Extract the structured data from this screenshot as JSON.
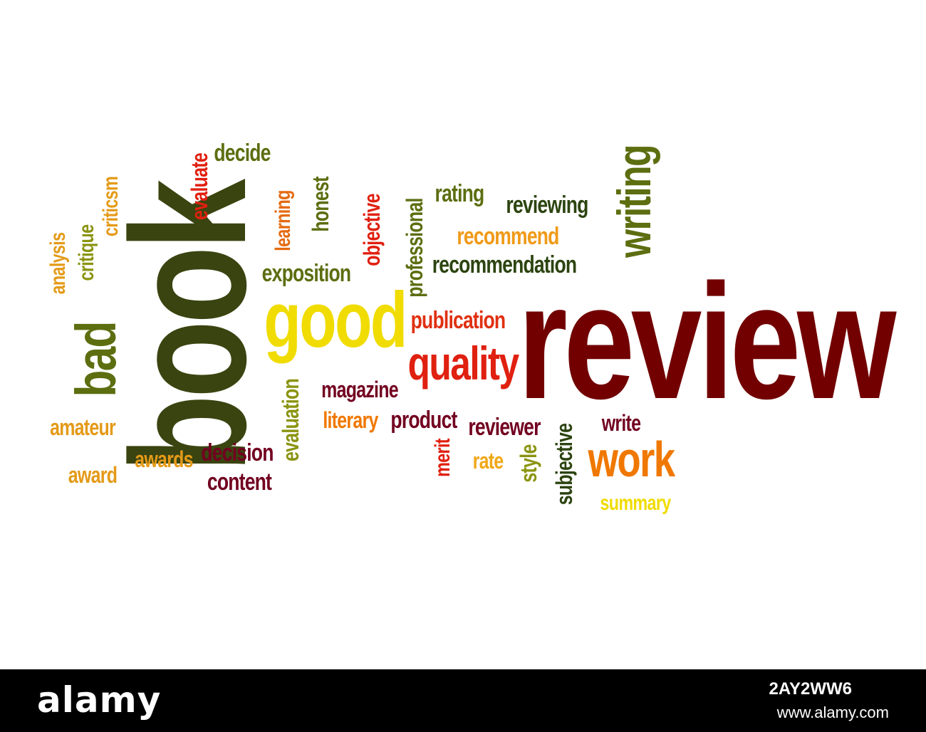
{
  "words": {
    "review": {
      "text": "review",
      "color": "#720000"
    },
    "book": {
      "text": "book",
      "color": "#3a4410"
    },
    "good": {
      "text": "good",
      "color": "#f0dc00"
    },
    "quality": {
      "text": "quality",
      "color": "#e02010"
    },
    "writing": {
      "text": "writing",
      "color": "#5c6e10"
    },
    "work": {
      "text": "work",
      "color": "#f07800"
    },
    "bad": {
      "text": "bad",
      "color": "#5c6e10"
    },
    "analysis": {
      "text": "analysis",
      "color": "#e49a18"
    },
    "critique": {
      "text": "critique",
      "color": "#8a9410"
    },
    "criticsm": {
      "text": "criticsm",
      "color": "#e49a18"
    },
    "evaluate": {
      "text": "evaluate",
      "color": "#e02010"
    },
    "decide": {
      "text": "decide",
      "color": "#5c6e10"
    },
    "learning": {
      "text": "learning",
      "color": "#e46a10"
    },
    "honest": {
      "text": "honest",
      "color": "#5c6e10"
    },
    "objective": {
      "text": "objective",
      "color": "#e02010"
    },
    "professional": {
      "text": "professional",
      "color": "#5c6e10"
    },
    "rating": {
      "text": "rating",
      "color": "#5c6e10"
    },
    "reviewing": {
      "text": "reviewing",
      "color": "#2c4410"
    },
    "recommend": {
      "text": "recommend",
      "color": "#f09a18"
    },
    "recommendation": {
      "text": "recommendation",
      "color": "#2c4410"
    },
    "exposition": {
      "text": "exposition",
      "color": "#5c6e10"
    },
    "publication": {
      "text": "publication",
      "color": "#e03010"
    },
    "magazine": {
      "text": "magazine",
      "color": "#720020"
    },
    "literary": {
      "text": "literary",
      "color": "#f07800"
    },
    "product": {
      "text": "product",
      "color": "#720020"
    },
    "reviewer": {
      "text": "reviewer",
      "color": "#720020"
    },
    "write": {
      "text": "write",
      "color": "#720020"
    },
    "evaluation": {
      "text": "evaluation",
      "color": "#8a9410"
    },
    "amateur": {
      "text": "amateur",
      "color": "#e49a18"
    },
    "awards": {
      "text": "awards",
      "color": "#e49a18"
    },
    "award": {
      "text": "award",
      "color": "#e49a18"
    },
    "decision": {
      "text": "decision",
      "color": "#720020"
    },
    "content": {
      "text": "content",
      "color": "#720020"
    },
    "merit": {
      "text": "merit",
      "color": "#e02010"
    },
    "rate": {
      "text": "rate",
      "color": "#f0a818"
    },
    "style": {
      "text": "style",
      "color": "#8a9410"
    },
    "subjective": {
      "text": "subjective",
      "color": "#2c4410"
    },
    "summary": {
      "text": "summary",
      "color": "#f0dc00"
    }
  },
  "footer": {
    "logo": "alamy",
    "image_code": "2AY2WW6",
    "site": "www.alamy.com"
  }
}
